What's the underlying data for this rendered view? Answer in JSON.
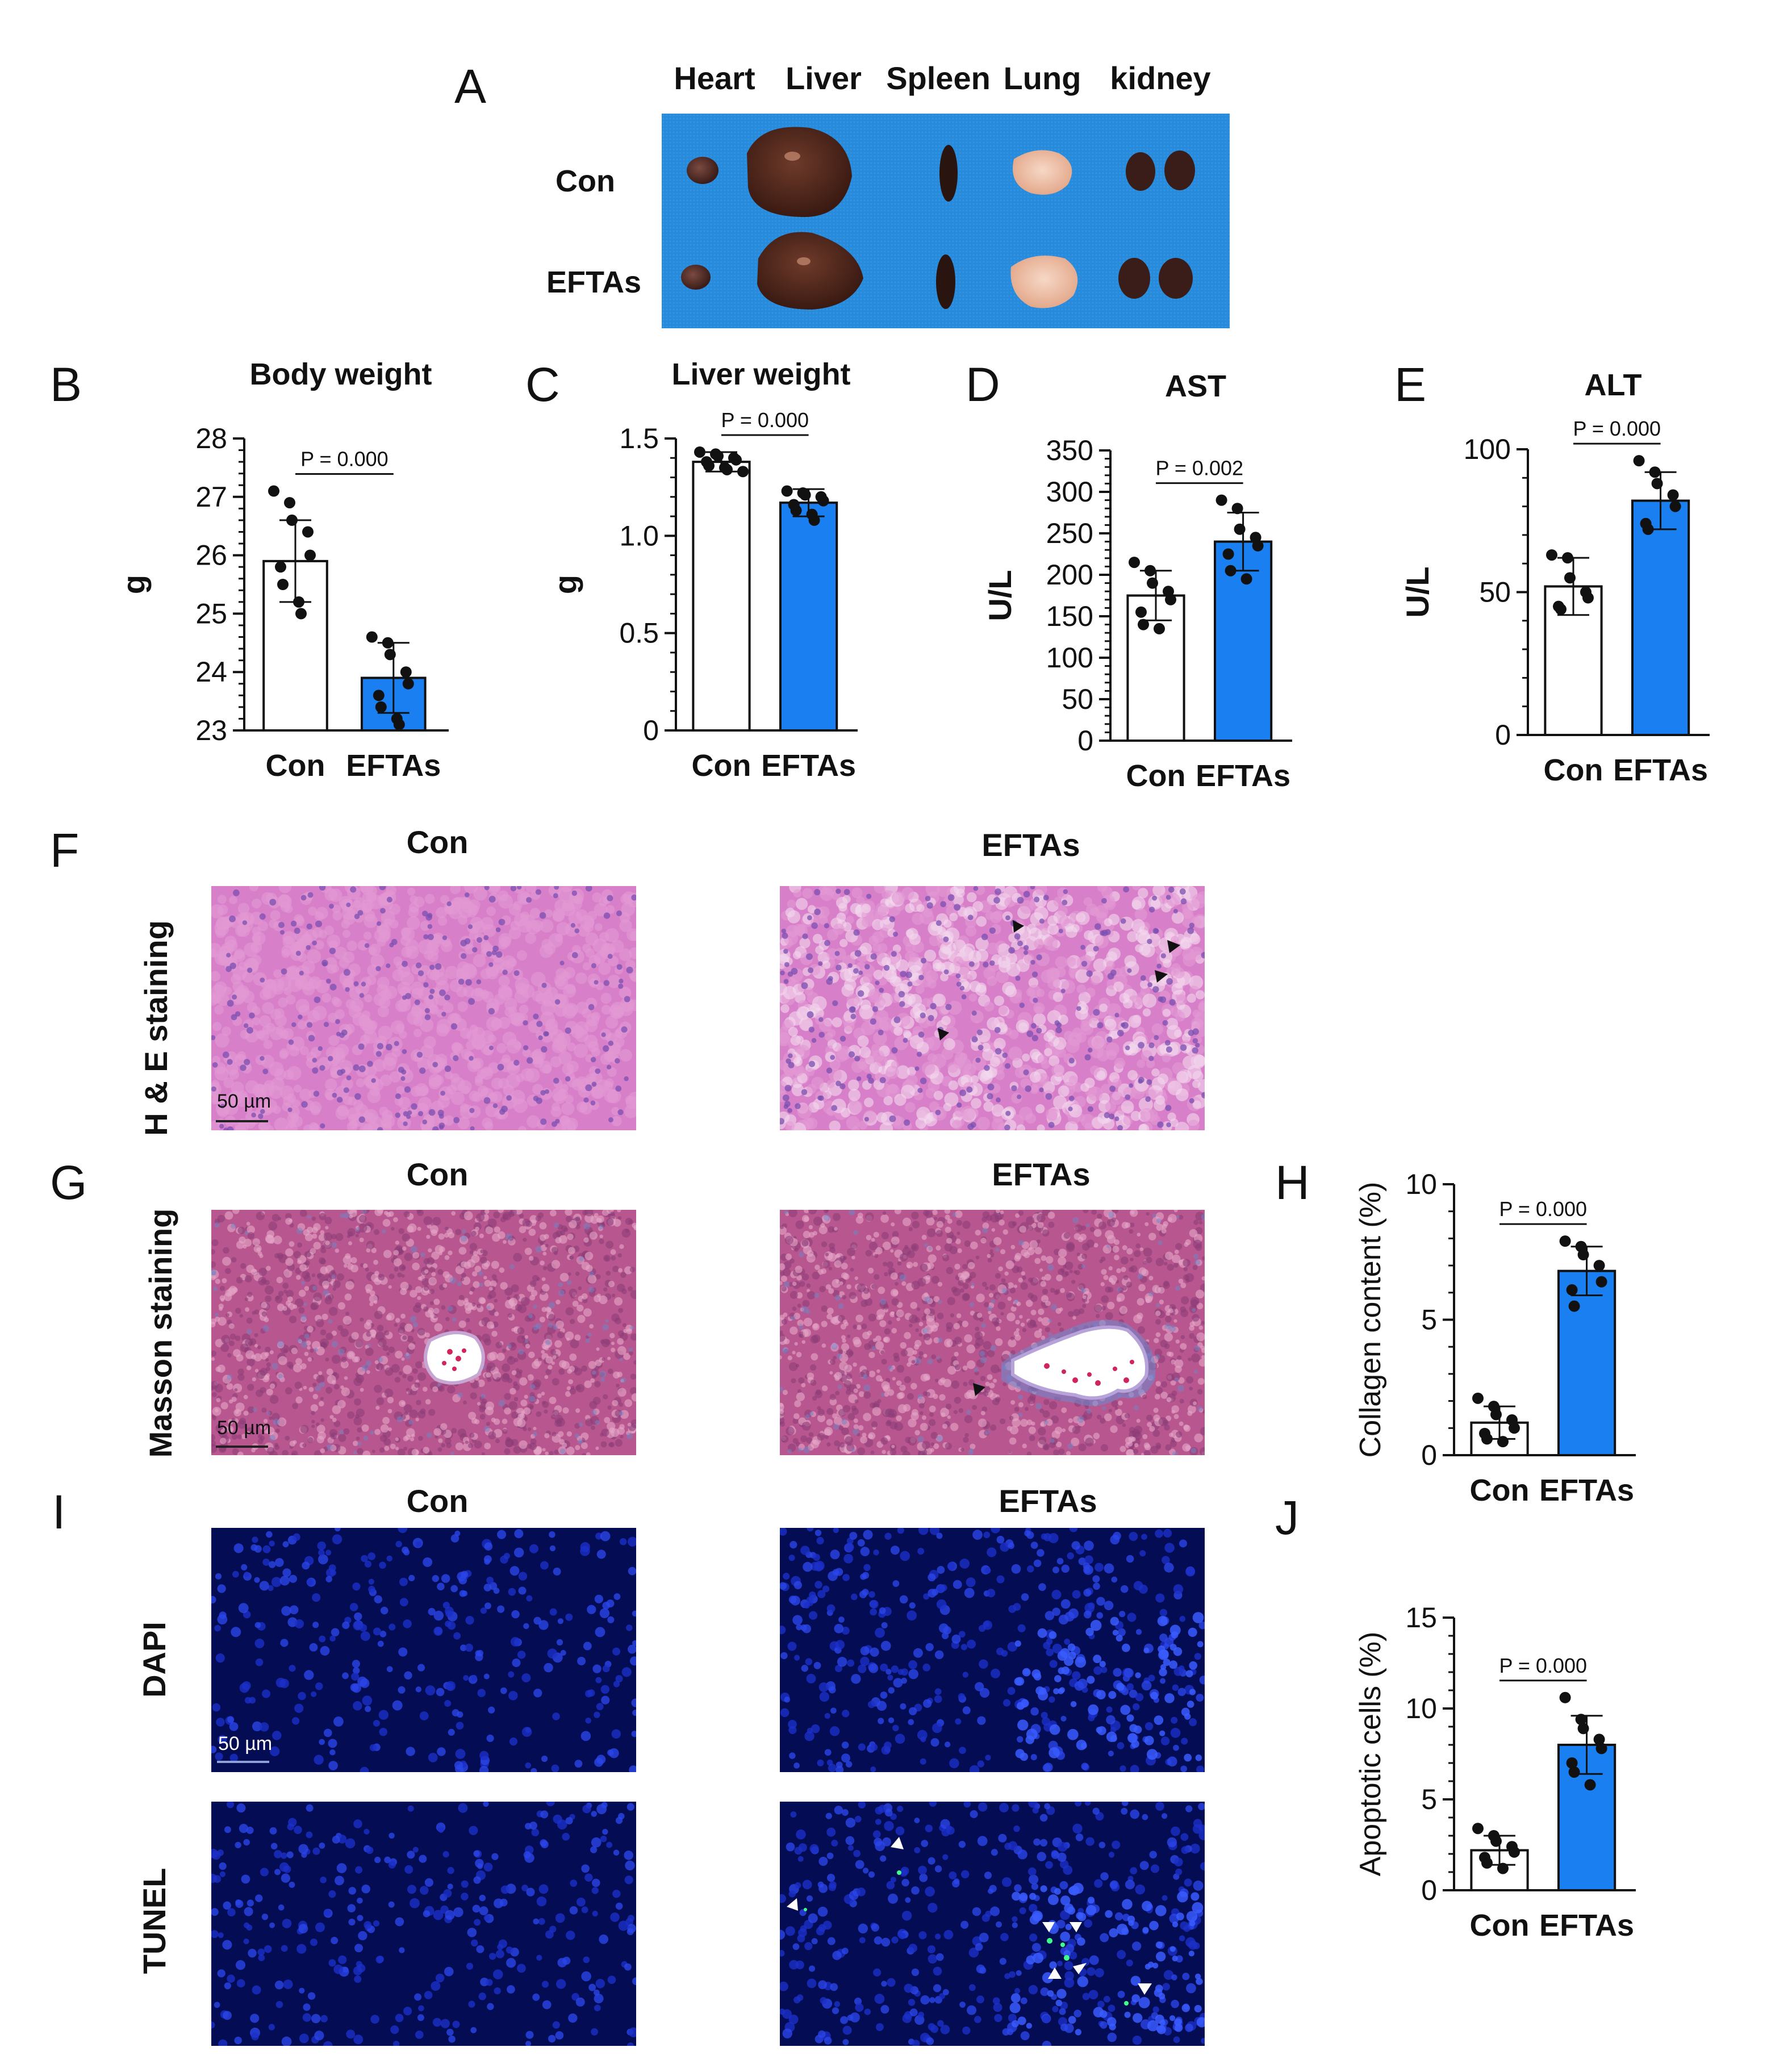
{
  "panel_letters": {
    "A": "A",
    "B": "B",
    "C": "C",
    "D": "D",
    "E": "E",
    "F": "F",
    "G": "G",
    "H": "H",
    "I": "I",
    "J": "J"
  },
  "organ_photo": {
    "organs": [
      "Heart",
      "Liver",
      "Spleen",
      "Lung",
      "kidney"
    ],
    "rows": [
      "Con",
      "EFTAs"
    ],
    "background_color": "#2a8fe0"
  },
  "group_labels": {
    "con": "Con",
    "eftas": "EFTAs"
  },
  "histology": {
    "he_label": "H & E staining",
    "masson_label": "Masson staining",
    "dapi_label": "DAPI",
    "tunel_label": "TUNEL",
    "scale_bar": "50 µm",
    "he_color": "#d87fc9",
    "masson_color": "#b8578f",
    "fluor_color": "#061066",
    "arrow_color": "#111111"
  },
  "colors": {
    "con_bar": "#ffffff",
    "eftas_bar": "#1a7ff0",
    "point": "#111111"
  },
  "chart_data": [
    {
      "id": "B",
      "type": "bar",
      "title": "Body weight",
      "ylabel": "g",
      "categories": [
        "Con",
        "EFTAs"
      ],
      "values": [
        25.9,
        23.9
      ],
      "errors": [
        0.7,
        0.6
      ],
      "ylim": [
        23,
        28
      ],
      "yticks": [
        "23",
        "24",
        "25",
        "26",
        "27",
        "28"
      ],
      "p_label": "P = 0.000",
      "points": [
        [
          27.1,
          26.9,
          26.6,
          26.4,
          26.0,
          25.8,
          25.5,
          25.2,
          25.0
        ],
        [
          24.6,
          24.5,
          24.3,
          24.0,
          23.8,
          23.6,
          23.4,
          23.2,
          23.1
        ]
      ]
    },
    {
      "id": "C",
      "type": "bar",
      "title": "Liver weight",
      "ylabel": "g",
      "categories": [
        "Con",
        "EFTAs"
      ],
      "values": [
        1.38,
        1.17
      ],
      "errors": [
        0.05,
        0.07
      ],
      "ylim": [
        0,
        1.5
      ],
      "yticks": [
        "0",
        "0.5",
        "1.0",
        "1.5"
      ],
      "p_label": "P = 0.000",
      "points": [
        [
          1.43,
          1.42,
          1.41,
          1.4,
          1.39,
          1.38,
          1.36,
          1.35,
          1.34,
          1.33
        ],
        [
          1.23,
          1.22,
          1.21,
          1.2,
          1.18,
          1.16,
          1.13,
          1.11,
          1.08
        ]
      ]
    },
    {
      "id": "D",
      "type": "bar",
      "title": "AST",
      "ylabel": "U/L",
      "categories": [
        "Con",
        "EFTAs"
      ],
      "values": [
        175,
        240
      ],
      "errors": [
        30,
        35
      ],
      "ylim": [
        0,
        350
      ],
      "yticks": [
        "0",
        "50",
        "100",
        "150",
        "200",
        "250",
        "300",
        "350"
      ],
      "p_label": "P = 0.002",
      "points": [
        [
          215,
          205,
          190,
          180,
          170,
          155,
          140,
          135
        ],
        [
          290,
          280,
          255,
          245,
          235,
          225,
          205,
          195
        ]
      ]
    },
    {
      "id": "E",
      "type": "bar",
      "title": "ALT",
      "ylabel": "U/L",
      "categories": [
        "Con",
        "EFTAs"
      ],
      "values": [
        52,
        82
      ],
      "errors": [
        10,
        10
      ],
      "ylim": [
        0,
        100
      ],
      "yticks": [
        "0",
        "50",
        "100"
      ],
      "p_label": "P = 0.000",
      "points": [
        [
          63,
          62,
          55,
          50,
          48,
          45,
          44
        ],
        [
          96,
          92,
          88,
          84,
          80,
          74,
          72
        ]
      ]
    },
    {
      "id": "H",
      "type": "bar",
      "title": "",
      "ylabel": "Collagen content (%)",
      "categories": [
        "Con",
        "EFTAs"
      ],
      "values": [
        1.2,
        6.8
      ],
      "errors": [
        0.6,
        0.9
      ],
      "ylim": [
        0,
        10
      ],
      "yticks": [
        "0",
        "5",
        "10"
      ],
      "p_label": "P = 0.000",
      "points": [
        [
          2.1,
          1.8,
          1.5,
          1.3,
          1.0,
          0.8,
          0.6,
          0.5
        ],
        [
          7.9,
          7.7,
          7.4,
          7.0,
          6.4,
          6.1,
          5.5
        ]
      ]
    },
    {
      "id": "J",
      "type": "bar",
      "title": "",
      "ylabel": "Apoptotic cells (%)",
      "categories": [
        "Con",
        "EFTAs"
      ],
      "values": [
        2.2,
        8.0
      ],
      "errors": [
        0.8,
        1.6
      ],
      "ylim": [
        0,
        15
      ],
      "yticks": [
        "0",
        "5",
        "10",
        "15"
      ],
      "p_label": "P = 0.000",
      "points": [
        [
          3.4,
          3.0,
          2.7,
          2.4,
          2.1,
          1.8,
          1.5,
          1.2
        ],
        [
          10.6,
          9.4,
          8.9,
          8.3,
          7.8,
          7.0,
          6.5,
          5.8
        ]
      ]
    }
  ]
}
